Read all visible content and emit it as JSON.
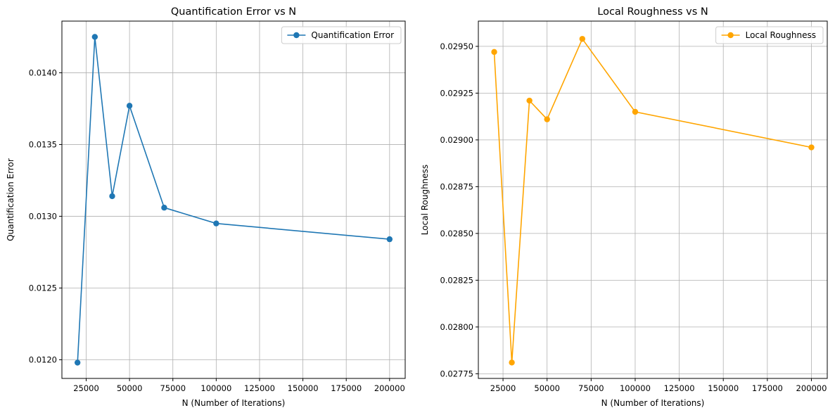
{
  "chart_data": [
    {
      "type": "line",
      "title": "Quantification Error vs N",
      "xlabel": "N (Number of Iterations)",
      "ylabel": "Quantification Error",
      "x": [
        20000,
        30000,
        40000,
        50000,
        70000,
        100000,
        200000
      ],
      "series": [
        {
          "name": "Quantification Error",
          "color": "#1f77b4",
          "marker": "circle",
          "values": [
            0.01198,
            0.01425,
            0.01314,
            0.01377,
            0.01306,
            0.01295,
            0.01284
          ]
        }
      ],
      "xlim": [
        11000,
        209000
      ],
      "ylim": [
        0.01187,
        0.01436
      ],
      "xticks": [
        25000,
        50000,
        75000,
        100000,
        125000,
        150000,
        175000,
        200000
      ],
      "xtick_labels": [
        "25000",
        "50000",
        "75000",
        "100000",
        "125000",
        "150000",
        "175000",
        "200000"
      ],
      "yticks": [
        0.012,
        0.0125,
        0.013,
        0.0135,
        0.014
      ],
      "ytick_labels": [
        "0.0120",
        "0.0125",
        "0.0130",
        "0.0135",
        "0.0140"
      ],
      "grid": true,
      "legend": "top-right"
    },
    {
      "type": "line",
      "title": "Local Roughness vs N",
      "xlabel": "N (Number of Iterations)",
      "ylabel": "Local Roughness",
      "x": [
        20000,
        30000,
        40000,
        50000,
        70000,
        100000,
        200000
      ],
      "series": [
        {
          "name": "Local Roughness",
          "color": "#ffa500",
          "marker": "circle",
          "values": [
            0.02947,
            0.02781,
            0.02921,
            0.02911,
            0.02954,
            0.02915,
            0.02896
          ]
        }
      ],
      "xlim": [
        11000,
        209000
      ],
      "ylim": [
        0.027725,
        0.029635
      ],
      "xticks": [
        25000,
        50000,
        75000,
        100000,
        125000,
        150000,
        175000,
        200000
      ],
      "xtick_labels": [
        "25000",
        "50000",
        "75000",
        "100000",
        "125000",
        "150000",
        "175000",
        "200000"
      ],
      "yticks": [
        0.02775,
        0.028,
        0.02825,
        0.0285,
        0.02875,
        0.029,
        0.02925,
        0.0295
      ],
      "ytick_labels": [
        "0.02775",
        "0.02800",
        "0.02825",
        "0.02850",
        "0.02875",
        "0.02900",
        "0.02925",
        "0.02950"
      ],
      "grid": true,
      "legend": "top-right"
    }
  ]
}
